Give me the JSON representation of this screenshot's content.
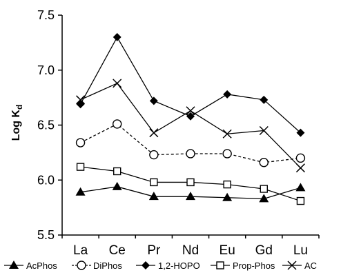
{
  "chart_data": {
    "type": "line",
    "categories": [
      "La",
      "Ce",
      "Pr",
      "Nd",
      "Eu",
      "Gd",
      "Lu"
    ],
    "ylabel_main": "Log K",
    "ylabel_sub": "d",
    "ylim": [
      5.5,
      7.5
    ],
    "yticks": [
      "5.5",
      "6.0",
      "6.5",
      "7.0",
      "7.5"
    ],
    "ytick_values": [
      5.5,
      6.0,
      6.5,
      7.0,
      7.5
    ],
    "grid": false,
    "legend_position": "bottom",
    "series": [
      {
        "name": "AcPhos",
        "marker": "filled-triangle",
        "line": "solid",
        "values": [
          5.89,
          5.94,
          5.85,
          5.85,
          5.84,
          5.83,
          5.93
        ]
      },
      {
        "name": "DiPhos",
        "marker": "open-circle",
        "line": "dashed",
        "values": [
          6.34,
          6.51,
          6.23,
          6.24,
          6.24,
          6.16,
          6.2
        ]
      },
      {
        "name": "1,2-HOPO",
        "marker": "filled-diamond",
        "line": "solid",
        "values": [
          6.69,
          7.3,
          6.72,
          6.58,
          6.78,
          6.73,
          6.43
        ]
      },
      {
        "name": "Prop-Phos",
        "marker": "open-square",
        "line": "solid",
        "values": [
          6.12,
          6.08,
          5.98,
          5.98,
          5.96,
          5.92,
          5.81
        ]
      },
      {
        "name": "AC",
        "marker": "cross",
        "line": "solid",
        "values": [
          6.73,
          6.88,
          6.43,
          6.63,
          6.42,
          6.45,
          6.11
        ]
      }
    ],
    "colors": {
      "stroke": "#000000",
      "fill": "#000000",
      "background": "#ffffff"
    }
  }
}
